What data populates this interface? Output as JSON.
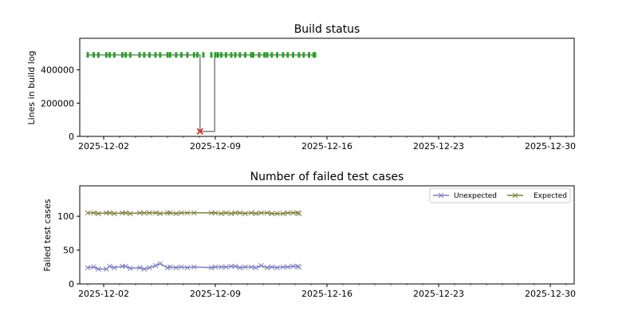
{
  "chart_data": [
    {
      "type": "line",
      "title": "Build status",
      "xlabel": "",
      "ylabel": "Lines in build log",
      "xlim": [
        "2025-11-30T12:00",
        "2025-12-31T12:00"
      ],
      "ylim": [
        0,
        590000
      ],
      "x_ticks": [
        "2025-12-02",
        "2025-12-09",
        "2025-12-16",
        "2025-12-23",
        "2025-12-30"
      ],
      "y_ticks": [
        0,
        200000,
        400000
      ],
      "y_tick_labels": [
        "0",
        "200000",
        "400000"
      ],
      "colors": {
        "line": "#808080",
        "success": "#2ca02c",
        "failure": "#d62728"
      },
      "series": [
        {
          "status": "success",
          "x": [
            "2025-12-01T00:00",
            "2025-12-01T09:00",
            "2025-12-01T16:00",
            "2025-12-02T04:00",
            "2025-12-02T09:00",
            "2025-12-02T16:00",
            "2025-12-03T04:00",
            "2025-12-03T09:00",
            "2025-12-03T16:00",
            "2025-12-04T06:00",
            "2025-12-04T13:00",
            "2025-12-04T21:00",
            "2025-12-05T06:00",
            "2025-12-05T13:00",
            "2025-12-06T00:00",
            "2025-12-06T04:00",
            "2025-12-06T13:00",
            "2025-12-06T21:00",
            "2025-12-07T06:00",
            "2025-12-07T16:00",
            "2025-12-07T21:00",
            "2025-12-08T06:00",
            "2025-12-08T18:00",
            "2025-12-09T00:00",
            "2025-12-09T04:00",
            "2025-12-09T09:00",
            "2025-12-09T16:00",
            "2025-12-10T00:00",
            "2025-12-10T06:00",
            "2025-12-10T13:00",
            "2025-12-10T21:00",
            "2025-12-11T06:00",
            "2025-12-11T09:00",
            "2025-12-11T18:00",
            "2025-12-12T02:00",
            "2025-12-12T06:00",
            "2025-12-12T13:00",
            "2025-12-12T21:00",
            "2025-12-13T06:00",
            "2025-12-13T13:00",
            "2025-12-13T21:00",
            "2025-12-14T06:00",
            "2025-12-14T13:00",
            "2025-12-14T21:00",
            "2025-12-15T04:00",
            "2025-12-15T06:00"
          ],
          "y": [
            490000,
            490000,
            490000,
            490000,
            490000,
            490000,
            490000,
            490000,
            490000,
            490000,
            490000,
            490000,
            490000,
            490000,
            490000,
            490000,
            490000,
            490000,
            490000,
            490000,
            490000,
            490000,
            490000,
            490000,
            490000,
            490000,
            490000,
            490000,
            490000,
            490000,
            490000,
            490000,
            490000,
            490000,
            490000,
            490000,
            490000,
            490000,
            490000,
            490000,
            490000,
            490000,
            490000,
            490000,
            490000,
            490000
          ]
        },
        {
          "status": "failure",
          "x": [
            "2025-12-08T01:00"
          ],
          "y": [
            30000
          ]
        }
      ],
      "line_points": {
        "x": [
          "2025-12-01T00:00",
          "2025-12-08T01:00",
          "2025-12-08T01:00",
          "2025-12-08T23:00",
          "2025-12-08T23:00",
          "2025-12-15T06:00"
        ],
        "y": [
          490000,
          490000,
          30000,
          30000,
          490000,
          490000
        ]
      }
    },
    {
      "type": "line",
      "title": "Number of failed test cases",
      "xlabel": "",
      "ylabel": "Failed test cases",
      "xlim": [
        "2025-11-30T12:00",
        "2025-12-31T12:00"
      ],
      "ylim": [
        0,
        145
      ],
      "x_ticks": [
        "2025-12-02",
        "2025-12-09",
        "2025-12-16",
        "2025-12-23",
        "2025-12-30"
      ],
      "y_ticks": [
        0,
        50,
        100
      ],
      "y_tick_labels": [
        "0",
        "50",
        "100"
      ],
      "legend_position": "top-right",
      "series": [
        {
          "name": "Unexpected",
          "color": "#7f7fbf",
          "x": [
            "2025-12-01T00:00",
            "2025-12-01T09:00",
            "2025-12-01T16:00",
            "2025-12-02T04:00",
            "2025-12-02T09:00",
            "2025-12-02T16:00",
            "2025-12-03T04:00",
            "2025-12-03T09:00",
            "2025-12-03T16:00",
            "2025-12-04T06:00",
            "2025-12-04T13:00",
            "2025-12-04T21:00",
            "2025-12-05T06:00",
            "2025-12-05T13:00",
            "2025-12-06T00:00",
            "2025-12-06T04:00",
            "2025-12-06T13:00",
            "2025-12-06T21:00",
            "2025-12-07T06:00",
            "2025-12-07T16:00",
            "2025-12-08T18:00",
            "2025-12-09T00:00",
            "2025-12-09T09:00",
            "2025-12-09T16:00",
            "2025-12-10T00:00",
            "2025-12-10T06:00",
            "2025-12-10T13:00",
            "2025-12-10T21:00",
            "2025-12-11T06:00",
            "2025-12-11T13:00",
            "2025-12-11T21:00",
            "2025-12-12T06:00",
            "2025-12-12T13:00",
            "2025-12-12T21:00",
            "2025-12-13T06:00",
            "2025-12-13T13:00",
            "2025-12-13T21:00",
            "2025-12-14T04:00",
            "2025-12-14T06:00"
          ],
          "values": [
            24,
            25,
            22,
            22,
            26,
            24,
            26,
            26,
            23,
            24,
            22,
            24,
            27,
            30,
            24,
            25,
            24,
            25,
            24,
            25,
            24,
            25,
            25,
            25,
            26,
            26,
            24,
            25,
            25,
            24,
            27,
            24,
            25,
            24,
            25,
            25,
            26,
            26,
            25
          ]
        },
        {
          "name": "Expected",
          "color": "#7f7f3f",
          "x": [
            "2025-12-01T00:00",
            "2025-12-01T09:00",
            "2025-12-01T16:00",
            "2025-12-02T04:00",
            "2025-12-02T09:00",
            "2025-12-02T16:00",
            "2025-12-03T04:00",
            "2025-12-03T09:00",
            "2025-12-03T16:00",
            "2025-12-04T06:00",
            "2025-12-04T13:00",
            "2025-12-04T21:00",
            "2025-12-05T06:00",
            "2025-12-05T13:00",
            "2025-12-06T00:00",
            "2025-12-06T04:00",
            "2025-12-06T13:00",
            "2025-12-06T21:00",
            "2025-12-07T06:00",
            "2025-12-07T16:00",
            "2025-12-08T18:00",
            "2025-12-09T00:00",
            "2025-12-09T09:00",
            "2025-12-09T16:00",
            "2025-12-10T00:00",
            "2025-12-10T06:00",
            "2025-12-10T13:00",
            "2025-12-10T21:00",
            "2025-12-11T06:00",
            "2025-12-11T13:00",
            "2025-12-11T21:00",
            "2025-12-12T06:00",
            "2025-12-12T13:00",
            "2025-12-12T21:00",
            "2025-12-13T06:00",
            "2025-12-13T13:00",
            "2025-12-13T21:00",
            "2025-12-14T04:00",
            "2025-12-14T06:00"
          ],
          "values": [
            105,
            105,
            104,
            105,
            105,
            104,
            105,
            105,
            104,
            105,
            105,
            105,
            105,
            104,
            105,
            105,
            104,
            105,
            105,
            105,
            105,
            105,
            104,
            105,
            104,
            105,
            105,
            104,
            105,
            104,
            105,
            105,
            104,
            104,
            104,
            105,
            105,
            105,
            104
          ]
        }
      ]
    }
  ]
}
